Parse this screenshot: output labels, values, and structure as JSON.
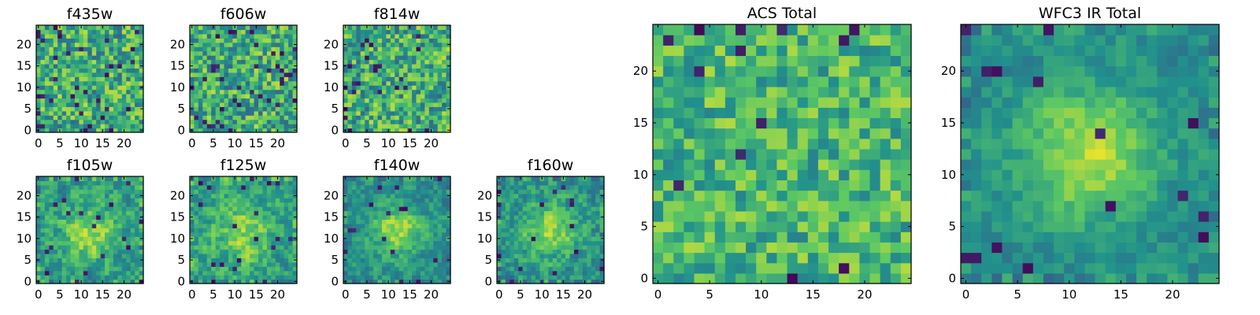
{
  "figure": {
    "background": "#ffffff",
    "colormap": "viridis",
    "colormap_stops": [
      "#440154",
      "#3b528b",
      "#21918c",
      "#5ec962",
      "#fde725"
    ]
  },
  "chart_data": [
    {
      "type": "heatmap",
      "title": "f435w",
      "grid_size": 25,
      "xticks": [
        "0",
        "5",
        "10",
        "15",
        "20"
      ],
      "yticks": [
        "0",
        "5",
        "10",
        "15",
        "20"
      ],
      "xlim": [
        -0.5,
        24.5
      ],
      "ylim": [
        -0.5,
        24.5
      ],
      "xlabel": "",
      "ylabel": "",
      "pattern": "noise",
      "mean": 0.62,
      "spread": 0.28,
      "dark_fraction": 0.05,
      "seed": 11
    },
    {
      "type": "heatmap",
      "title": "f606w",
      "grid_size": 25,
      "xticks": [
        "0",
        "5",
        "10",
        "15",
        "20"
      ],
      "yticks": [
        "0",
        "5",
        "10",
        "15",
        "20"
      ],
      "xlim": [
        -0.5,
        24.5
      ],
      "ylim": [
        -0.5,
        24.5
      ],
      "xlabel": "",
      "ylabel": "",
      "pattern": "noise",
      "mean": 0.62,
      "spread": 0.28,
      "dark_fraction": 0.05,
      "seed": 23
    },
    {
      "type": "heatmap",
      "title": "f814w",
      "grid_size": 25,
      "xticks": [
        "0",
        "5",
        "10",
        "15",
        "20"
      ],
      "yticks": [
        "0",
        "5",
        "10",
        "15",
        "20"
      ],
      "xlim": [
        -0.5,
        24.5
      ],
      "ylim": [
        -0.5,
        24.5
      ],
      "xlabel": "",
      "ylabel": "",
      "pattern": "noise",
      "mean": 0.62,
      "spread": 0.28,
      "dark_fraction": 0.04,
      "seed": 37
    },
    {
      "type": "heatmap",
      "title": "f105w",
      "grid_size": 25,
      "xticks": [
        "0",
        "5",
        "10",
        "15",
        "20"
      ],
      "yticks": [
        "0",
        "5",
        "10",
        "15",
        "20"
      ],
      "xlim": [
        -0.5,
        24.5
      ],
      "ylim": [
        -0.5,
        24.5
      ],
      "xlabel": "",
      "ylabel": "",
      "pattern": "source",
      "center": [
        12,
        11
      ],
      "source_sigma": 4.5,
      "source_amp": 0.3,
      "mean": 0.55,
      "spread": 0.25,
      "dark_fraction": 0.04,
      "seed": 41
    },
    {
      "type": "heatmap",
      "title": "f125w",
      "grid_size": 25,
      "xticks": [
        "0",
        "5",
        "10",
        "15",
        "20"
      ],
      "yticks": [
        "0",
        "5",
        "10",
        "15",
        "20"
      ],
      "xlim": [
        -0.5,
        24.5
      ],
      "ylim": [
        -0.5,
        24.5
      ],
      "xlabel": "",
      "ylabel": "",
      "pattern": "source",
      "center": [
        12,
        11
      ],
      "source_sigma": 4.5,
      "source_amp": 0.25,
      "mean": 0.58,
      "spread": 0.26,
      "dark_fraction": 0.04,
      "seed": 53
    },
    {
      "type": "heatmap",
      "title": "f140w",
      "grid_size": 25,
      "xticks": [
        "0",
        "5",
        "10",
        "15",
        "20"
      ],
      "yticks": [
        "0",
        "5",
        "10",
        "15",
        "20"
      ],
      "xlim": [
        -0.5,
        24.5
      ],
      "ylim": [
        -0.5,
        24.5
      ],
      "xlabel": "",
      "ylabel": "",
      "pattern": "source",
      "center": [
        12,
        12
      ],
      "source_sigma": 4.0,
      "source_amp": 0.38,
      "mean": 0.5,
      "spread": 0.2,
      "dark_fraction": 0.02,
      "seed": 67
    },
    {
      "type": "heatmap",
      "title": "f160w",
      "grid_size": 25,
      "xticks": [
        "0",
        "5",
        "10",
        "15",
        "20"
      ],
      "yticks": [
        "0",
        "5",
        "10",
        "15",
        "20"
      ],
      "xlim": [
        -0.5,
        24.5
      ],
      "ylim": [
        -0.5,
        24.5
      ],
      "xlabel": "",
      "ylabel": "",
      "pattern": "source",
      "center": [
        12,
        12
      ],
      "source_sigma": 4.0,
      "source_amp": 0.35,
      "mean": 0.52,
      "spread": 0.24,
      "dark_fraction": 0.03,
      "seed": 79
    },
    {
      "type": "heatmap",
      "title": "ACS Total",
      "grid_size": 25,
      "xticks": [
        "0",
        "5",
        "10",
        "15",
        "20"
      ],
      "yticks": [
        "0",
        "5",
        "10",
        "15",
        "20"
      ],
      "xlim": [
        -0.5,
        24.5
      ],
      "ylim": [
        -0.5,
        24.5
      ],
      "xlabel": "",
      "ylabel": "",
      "pattern": "noise",
      "mean": 0.66,
      "spread": 0.22,
      "dark_fraction": 0.03,
      "seed": 97
    },
    {
      "type": "heatmap",
      "title": "WFC3 IR Total",
      "grid_size": 25,
      "xticks": [
        "0",
        "5",
        "10",
        "15",
        "20"
      ],
      "yticks": [
        "0",
        "5",
        "10",
        "15",
        "20"
      ],
      "xlim": [
        -0.5,
        24.5
      ],
      "ylim": [
        -0.5,
        24.5
      ],
      "xlabel": "",
      "ylabel": "",
      "pattern": "source",
      "center": [
        12,
        12
      ],
      "source_sigma": 4.5,
      "source_amp": 0.42,
      "mean": 0.48,
      "spread": 0.16,
      "dark_fraction": 0.02,
      "seed": 113
    }
  ]
}
